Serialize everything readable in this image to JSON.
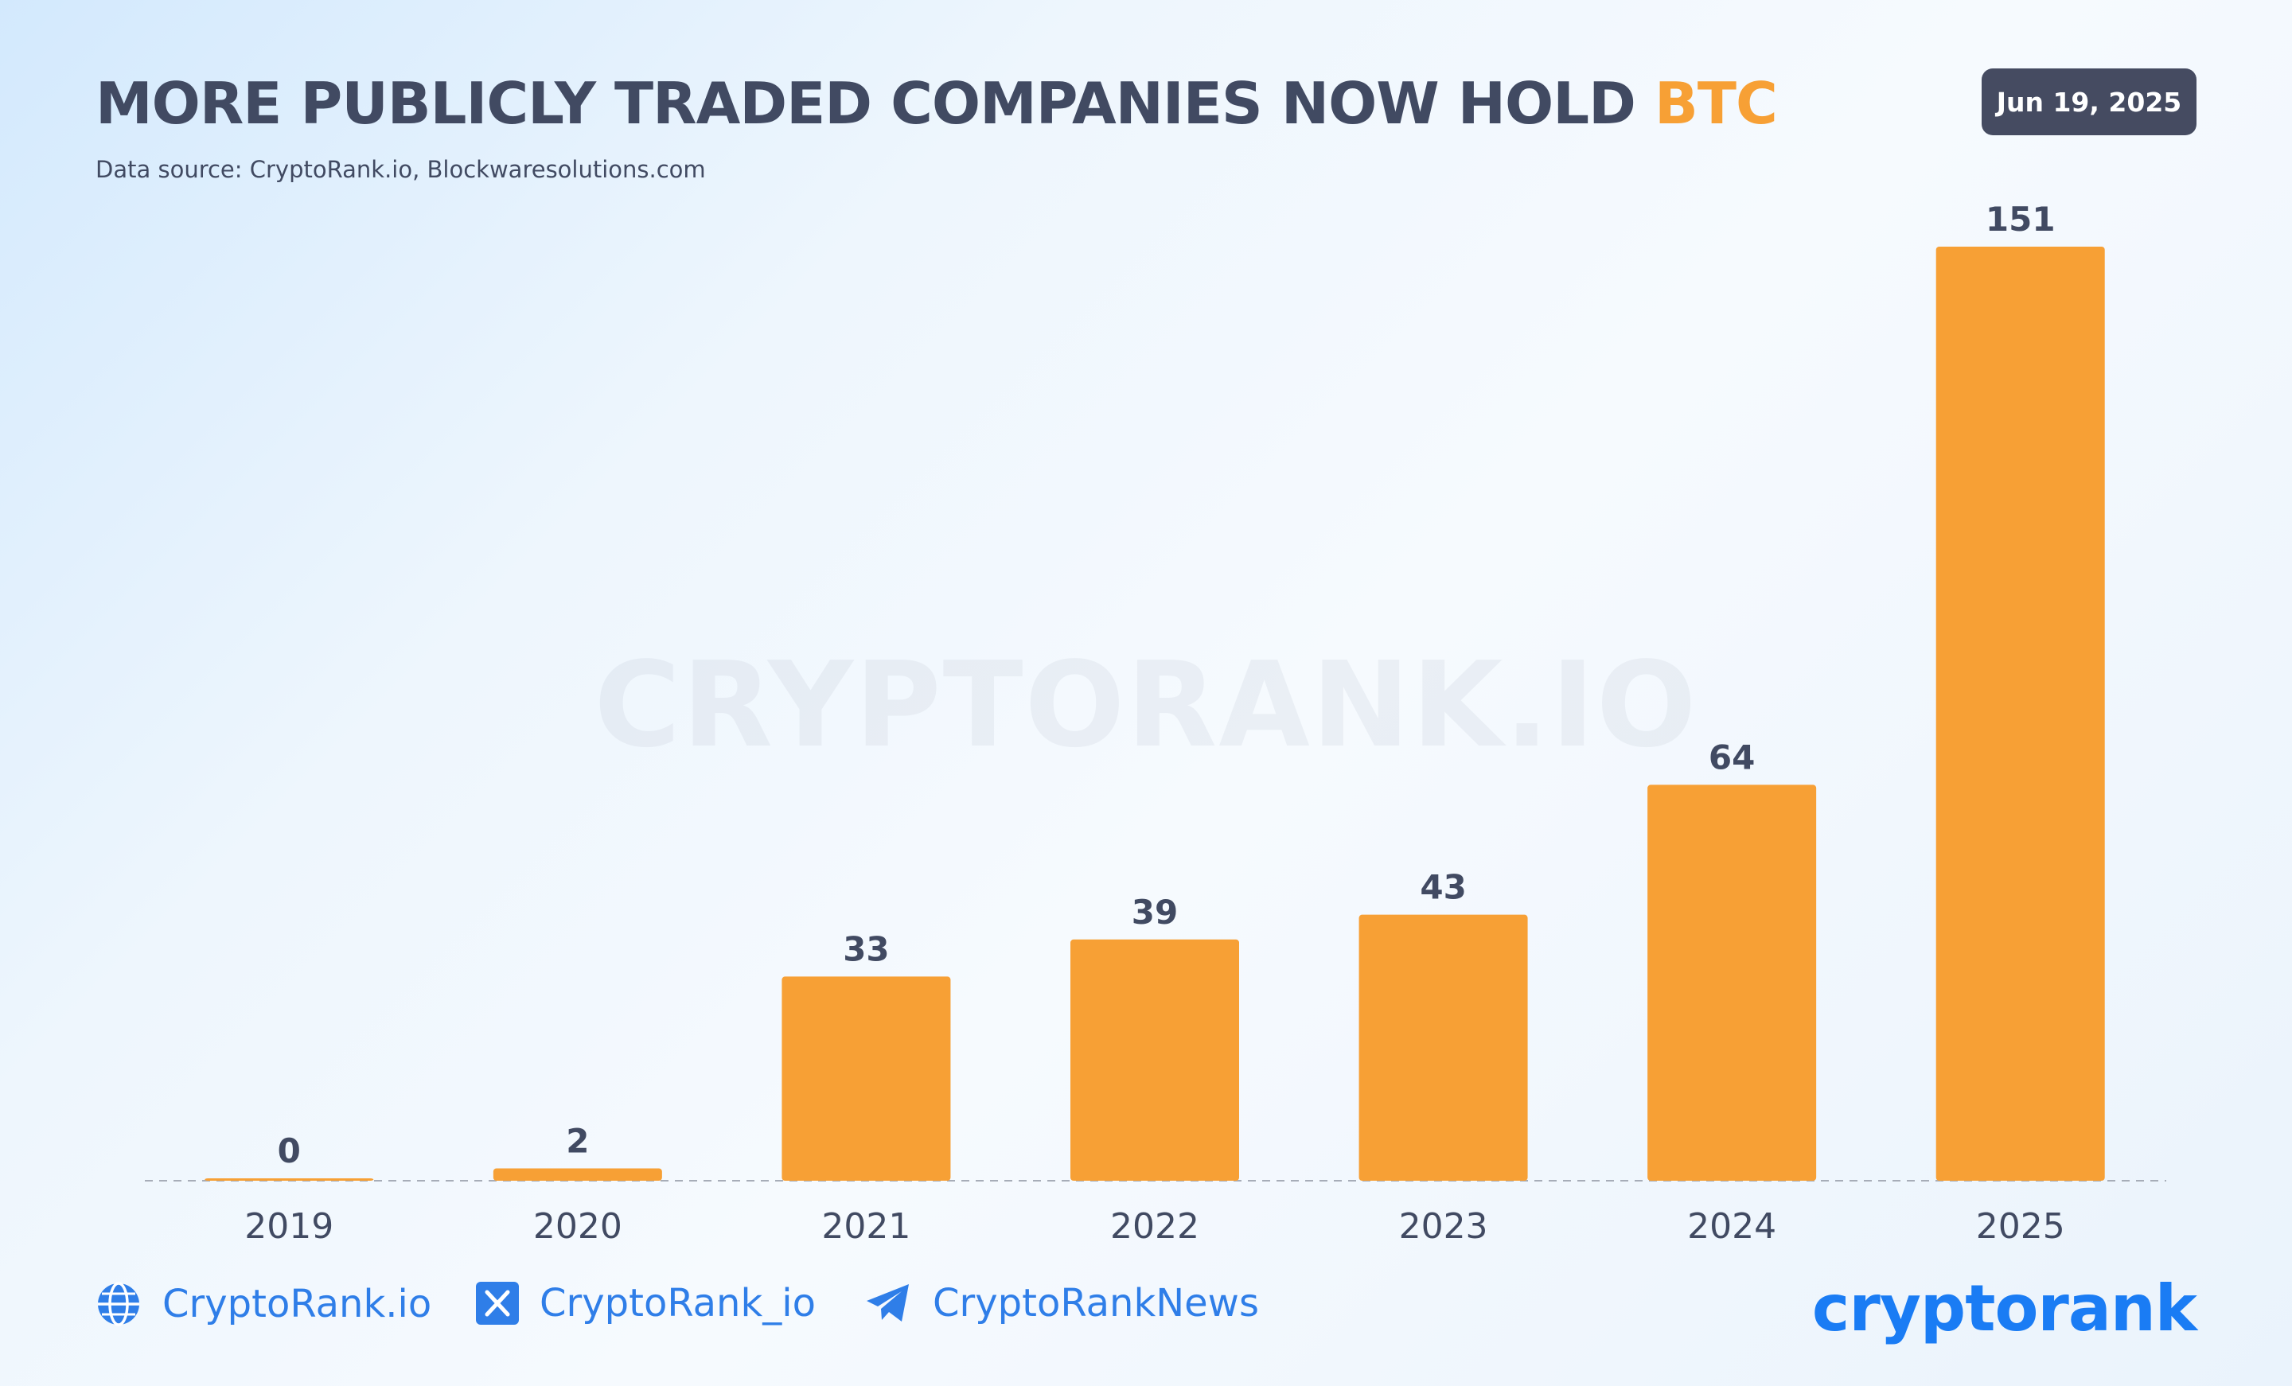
{
  "header": {
    "title_main": "MORE PUBLICLY TRADED COMPANIES NOW HOLD ",
    "title_accent": "BTC",
    "subtitle": "Data source: CryptoRank.io, Blockwaresolutions.com",
    "date": "Jun 19, 2025"
  },
  "watermark": "CRYPTORANK.IO",
  "chart_data": {
    "type": "bar",
    "title": "MORE PUBLICLY TRADED COMPANIES NOW HOLD BTC",
    "categories": [
      "2019",
      "2020",
      "2021",
      "2022",
      "2023",
      "2024",
      "2025"
    ],
    "values": [
      0,
      2,
      33,
      39,
      43,
      64,
      151
    ],
    "xlabel": "",
    "ylabel": "",
    "ylim": [
      0,
      151
    ],
    "grid": false,
    "legend": "none",
    "colors": {
      "bar": "#f7a035",
      "label": "#414a62",
      "baseline": "#a7adb8"
    }
  },
  "footer": {
    "website": "CryptoRank.io",
    "twitter": "CryptoRank_io",
    "telegram": "CryptoRankNews",
    "logo": "cryptorank",
    "icons": [
      "globe-icon",
      "x-icon",
      "telegram-icon"
    ],
    "link_color": "#2f7ee8"
  }
}
